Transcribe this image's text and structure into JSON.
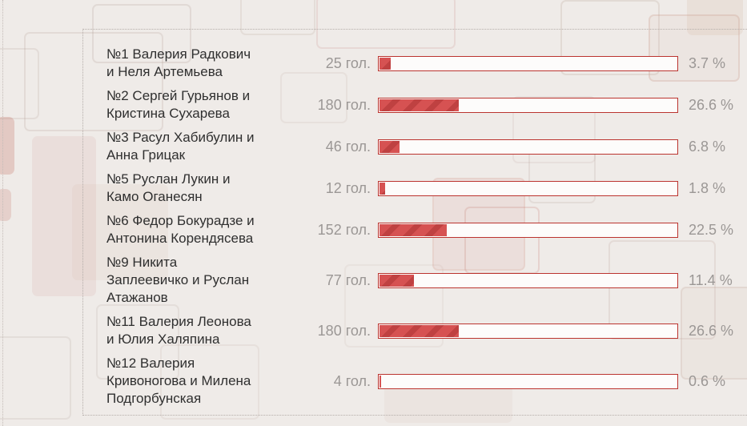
{
  "theme": {
    "bar_fill": "#d65252",
    "bar_stripe": "#bf4141",
    "bar_border": "#bb342f",
    "track_bg": "#fdfcfb",
    "name_color": "#2f2f2f",
    "muted_color": "#9b9795",
    "panel_border_color": "#b5aeaa",
    "page_bg": "#efebe8"
  },
  "chart_data": {
    "type": "bar",
    "orientation": "horizontal",
    "title": "",
    "unit_label": "гол.",
    "xlim": [
      0,
      100
    ],
    "grid": false,
    "legend": false,
    "rows": [
      {
        "label": "№1 Валерия Радкович и Неля Артемьева",
        "votes": 25,
        "votes_label": "25 гол.",
        "percent": 3.7,
        "percent_label": "3.7 %"
      },
      {
        "label": "№2 Сергей Гурьянов и Кристина Сухарева",
        "votes": 180,
        "votes_label": "180 гол.",
        "percent": 26.6,
        "percent_label": "26.6 %"
      },
      {
        "label": "№3 Расул Хабибулин и Анна Грицак",
        "votes": 46,
        "votes_label": "46 гол.",
        "percent": 6.8,
        "percent_label": "6.8 %"
      },
      {
        "label": "№5 Руслан Лукин и Камо Оганесян",
        "votes": 12,
        "votes_label": "12 гол.",
        "percent": 1.8,
        "percent_label": "1.8 %"
      },
      {
        "label": "№6 Федор Бокурадзе и Антонина Корендясева",
        "votes": 152,
        "votes_label": "152 гол.",
        "percent": 22.5,
        "percent_label": "22.5 %"
      },
      {
        "label": "№9 Никита Заплеевичко и Руслан Атажанов",
        "votes": 77,
        "votes_label": "77 гол.",
        "percent": 11.4,
        "percent_label": "11.4 %"
      },
      {
        "label": "№11 Валерия Леонова и Юлия Халяпина",
        "votes": 180,
        "votes_label": "180 гол.",
        "percent": 26.6,
        "percent_label": "26.6 %"
      },
      {
        "label": "№12 Валерия Кривоногова и Милена Подгорбунская",
        "votes": 4,
        "votes_label": "4 гол.",
        "percent": 0.6,
        "percent_label": "0.6 %"
      }
    ]
  }
}
